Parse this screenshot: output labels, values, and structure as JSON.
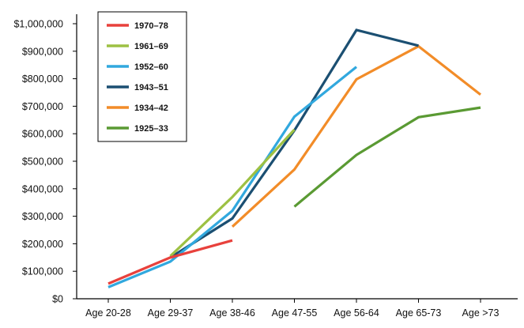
{
  "chart_data": {
    "type": "line",
    "categories": [
      "Age 20-28",
      "Age 29-37",
      "Age 38-46",
      "Age 47-55",
      "Age 56-64",
      "Age 65-73",
      "Age >73"
    ],
    "ylim": [
      0,
      1000000
    ],
    "y_ticks": [
      0,
      100000,
      200000,
      300000,
      400000,
      500000,
      600000,
      700000,
      800000,
      900000,
      1000000
    ],
    "y_tick_labels": [
      "$0",
      "$100,000",
      "$200,000",
      "$300,000",
      "$400,000",
      "$500,000",
      "$600,000",
      "$700,000",
      "$800,000",
      "$900,000",
      "$1,000,000"
    ],
    "grid": false,
    "legend_position": "top-left",
    "series": [
      {
        "name": "1970–78",
        "color": "#e8413c",
        "values": [
          55000,
          150000,
          212000,
          null,
          null,
          null,
          null
        ]
      },
      {
        "name": "1961–69",
        "color": "#9dc143",
        "values": [
          null,
          155000,
          370000,
          615000,
          null,
          null,
          null
        ]
      },
      {
        "name": "1952–60",
        "color": "#31a8de",
        "values": [
          42000,
          135000,
          320000,
          662000,
          843000,
          null,
          null
        ]
      },
      {
        "name": "1943–51",
        "color": "#1b4f72",
        "values": [
          null,
          150000,
          292000,
          612000,
          977000,
          920000,
          null
        ]
      },
      {
        "name": "1934–42",
        "color": "#f28c28",
        "values": [
          null,
          null,
          262000,
          470000,
          798000,
          918000,
          742000
        ]
      },
      {
        "name": "1925–33",
        "color": "#5a9a33",
        "values": [
          null,
          null,
          null,
          335000,
          523000,
          660000,
          695000
        ]
      }
    ]
  }
}
